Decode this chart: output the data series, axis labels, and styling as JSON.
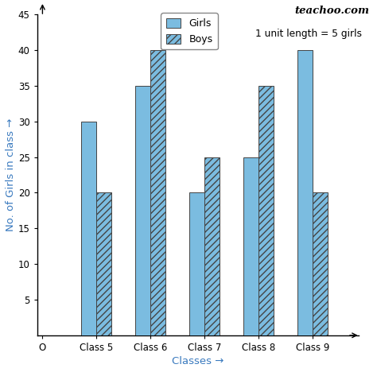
{
  "categories": [
    "Class 5",
    "Class 6",
    "Class 7",
    "Class 8",
    "Class 9"
  ],
  "girls_values": [
    30,
    35,
    20,
    25,
    40
  ],
  "boys_values": [
    20,
    40,
    25,
    35,
    20
  ],
  "bar_color": "#7bbce0",
  "hatch_boys": "////",
  "title": "teachoo.com",
  "xlabel": "Classes →",
  "ylabel": "No. of Girls in class →",
  "ylim_max": 45,
  "yticks": [
    5,
    10,
    15,
    20,
    25,
    30,
    35,
    40,
    45
  ],
  "unit_note": "1 unit length = 5 girls",
  "legend_girls": "Girls",
  "legend_boys": "Boys",
  "bar_width": 0.28,
  "xlabel_color": "#3a7abf",
  "ylabel_color": "#3a7abf",
  "title_color": "#111111"
}
